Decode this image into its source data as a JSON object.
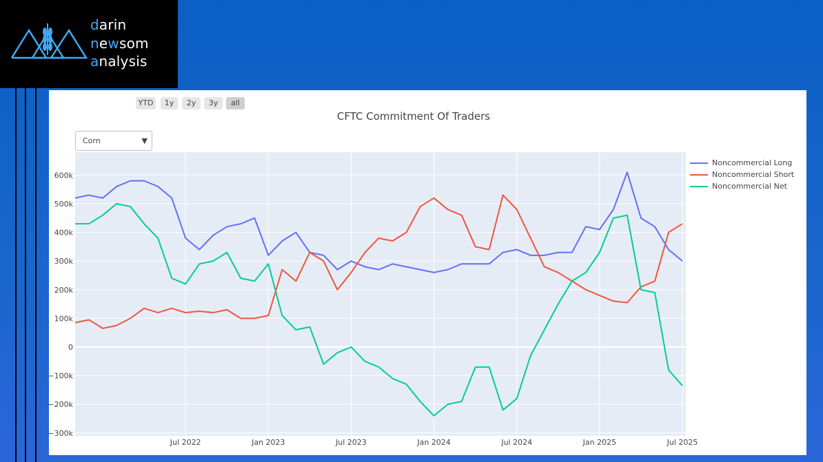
{
  "logo": {
    "line1_accent": "d",
    "line1_rest": "arin",
    "line2_accent": "n",
    "line2_mid": "e",
    "line2_accent2": "w",
    "line2_rest": "som",
    "line3_accent": "a",
    "line3_rest": "nalysis"
  },
  "range_selector": [
    "YTD",
    "1y",
    "2y",
    "3y",
    "all"
  ],
  "dropdown": {
    "selected": "Corn"
  },
  "colors": {
    "long": "#636efa",
    "short": "#ef553b",
    "net": "#00cc96",
    "plot_bg": "#e5ecf6"
  },
  "chart_data": {
    "type": "line",
    "title": "CFTC Commitment Of Traders",
    "xlabel": "",
    "ylabel": "",
    "x_start": "2021-11",
    "x_end": "2025-07",
    "x_ticks": [
      "Jul 2022",
      "Jan 2023",
      "Jul 2023",
      "Jan 2024",
      "Jul 2024",
      "Jan 2025",
      "Jul 2025"
    ],
    "y_ticks": [
      "600k",
      "500k",
      "400k",
      "300k",
      "200k",
      "100k",
      "0",
      "−100k",
      "−200k",
      "−300k"
    ],
    "ylim": [
      -310000,
      680000
    ],
    "legend_position": "right",
    "grid": true,
    "x": [
      "2021-11",
      "2021-12",
      "2022-01",
      "2022-02",
      "2022-03",
      "2022-04",
      "2022-05",
      "2022-06",
      "2022-07",
      "2022-08",
      "2022-09",
      "2022-10",
      "2022-11",
      "2022-12",
      "2023-01",
      "2023-02",
      "2023-03",
      "2023-04",
      "2023-05",
      "2023-06",
      "2023-07",
      "2023-08",
      "2023-09",
      "2023-10",
      "2023-11",
      "2023-12",
      "2024-01",
      "2024-02",
      "2024-03",
      "2024-04",
      "2024-05",
      "2024-06",
      "2024-07",
      "2024-08",
      "2024-09",
      "2024-10",
      "2024-11",
      "2024-12",
      "2025-01",
      "2025-02",
      "2025-03",
      "2025-04",
      "2025-05",
      "2025-06",
      "2025-07"
    ],
    "series": [
      {
        "name": "Noncommercial Long",
        "values": [
          520000,
          530000,
          520000,
          560000,
          580000,
          580000,
          560000,
          520000,
          380000,
          340000,
          390000,
          420000,
          430000,
          450000,
          320000,
          370000,
          400000,
          330000,
          320000,
          270000,
          300000,
          280000,
          270000,
          290000,
          280000,
          270000,
          260000,
          270000,
          290000,
          290000,
          290000,
          330000,
          340000,
          320000,
          320000,
          330000,
          330000,
          420000,
          410000,
          480000,
          610000,
          450000,
          420000,
          340000,
          300000
        ]
      },
      {
        "name": "Noncommercial Short",
        "values": [
          85000,
          95000,
          65000,
          75000,
          100000,
          135000,
          120000,
          135000,
          120000,
          125000,
          120000,
          130000,
          100000,
          100000,
          110000,
          270000,
          230000,
          330000,
          300000,
          200000,
          260000,
          330000,
          380000,
          370000,
          400000,
          490000,
          520000,
          480000,
          460000,
          350000,
          340000,
          530000,
          480000,
          380000,
          280000,
          260000,
          230000,
          200000,
          180000,
          160000,
          155000,
          210000,
          230000,
          400000,
          430000
        ]
      },
      {
        "name": "Noncommercial Net",
        "values": [
          430000,
          430000,
          460000,
          500000,
          490000,
          430000,
          380000,
          240000,
          220000,
          290000,
          300000,
          330000,
          240000,
          230000,
          290000,
          110000,
          60000,
          70000,
          -60000,
          -20000,
          0,
          -50000,
          -70000,
          -110000,
          -130000,
          -190000,
          -240000,
          -200000,
          -190000,
          -70000,
          -70000,
          -220000,
          -180000,
          -30000,
          60000,
          150000,
          230000,
          260000,
          330000,
          450000,
          460000,
          200000,
          190000,
          -80000,
          -135000
        ]
      }
    ]
  }
}
